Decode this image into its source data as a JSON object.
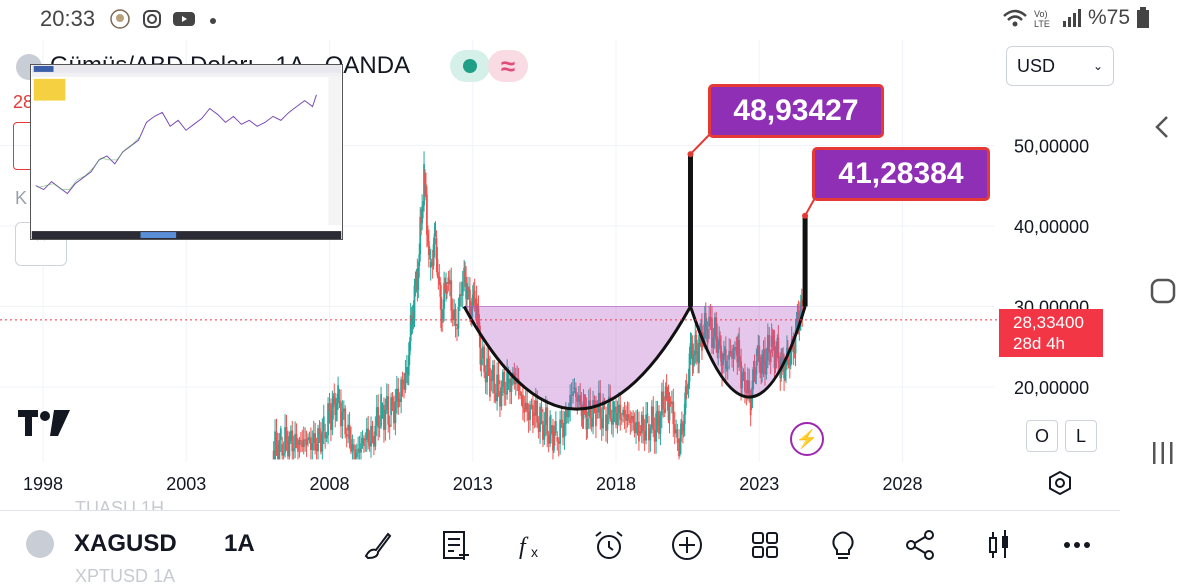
{
  "status_bar": {
    "time": "20:33",
    "battery": "%75",
    "icons": [
      "rose-icon",
      "instagram-icon",
      "youtube-icon",
      "dot-icon",
      "wifi-icon",
      "volte-icon",
      "signal-icon",
      "battery-icon"
    ]
  },
  "header": {
    "title": "Gümüş/ABD Doları · 1A · OANDA",
    "currency": "USD",
    "left_price_fragment": "28",
    "left_k_fragment": "K"
  },
  "chart_data": {
    "type": "candlestick",
    "x_ticks": [
      "1998",
      "2003",
      "2008",
      "2013",
      "2018",
      "2023",
      "2028"
    ],
    "y_ticks": [
      "20,00000",
      "30,00000",
      "40,00000",
      "50,00000"
    ],
    "y_values": [
      20,
      30,
      40,
      50
    ],
    "ylim": [
      12,
      60
    ],
    "xlim": [
      1996.2,
      2032.5
    ],
    "close_series": [
      [
        2006.0,
        12.1
      ],
      [
        2006.3,
        12.9
      ],
      [
        2006.6,
        13.3
      ],
      [
        2006.9,
        12.8
      ],
      [
        2007.2,
        13.4
      ],
      [
        2007.5,
        12.9
      ],
      [
        2007.8,
        14.4
      ],
      [
        2008.1,
        17.5
      ],
      [
        2008.3,
        18.3
      ],
      [
        2008.6,
        14.6
      ],
      [
        2008.9,
        11.3
      ],
      [
        2009.2,
        13.5
      ],
      [
        2009.5,
        13.9
      ],
      [
        2009.8,
        17.2
      ],
      [
        2010.1,
        16.5
      ],
      [
        2010.4,
        18.5
      ],
      [
        2010.7,
        21.9
      ],
      [
        2010.9,
        29.4
      ],
      [
        2011.1,
        35.0
      ],
      [
        2011.3,
        46.5
      ],
      [
        2011.5,
        34.8
      ],
      [
        2011.7,
        38.5
      ],
      [
        2011.9,
        28.5
      ],
      [
        2012.1,
        33.6
      ],
      [
        2012.4,
        27.3
      ],
      [
        2012.7,
        34.3
      ],
      [
        2012.9,
        29.9
      ],
      [
        2013.1,
        31.0
      ],
      [
        2013.3,
        23.5
      ],
      [
        2013.6,
        21.0
      ],
      [
        2013.9,
        19.5
      ],
      [
        2014.2,
        20.5
      ],
      [
        2014.5,
        21.1
      ],
      [
        2014.8,
        17.2
      ],
      [
        2015.1,
        16.8
      ],
      [
        2015.4,
        15.8
      ],
      [
        2015.7,
        14.6
      ],
      [
        2015.9,
        13.8
      ],
      [
        2016.2,
        15.4
      ],
      [
        2016.5,
        19.8
      ],
      [
        2016.8,
        17.4
      ],
      [
        2017.0,
        16.4
      ],
      [
        2017.3,
        17.2
      ],
      [
        2017.6,
        16.6
      ],
      [
        2017.9,
        16.9
      ],
      [
        2018.2,
        16.5
      ],
      [
        2018.5,
        16.0
      ],
      [
        2018.8,
        14.5
      ],
      [
        2019.1,
        15.4
      ],
      [
        2019.4,
        15.2
      ],
      [
        2019.7,
        18.4
      ],
      [
        2019.9,
        17.9
      ],
      [
        2020.2,
        12.0
      ],
      [
        2020.4,
        17.4
      ],
      [
        2020.6,
        24.5
      ],
      [
        2020.8,
        24.3
      ],
      [
        2021.0,
        26.4
      ],
      [
        2021.2,
        27.5
      ],
      [
        2021.5,
        26.3
      ],
      [
        2021.7,
        23.2
      ],
      [
        2021.9,
        23.4
      ],
      [
        2022.2,
        25.0
      ],
      [
        2022.4,
        21.5
      ],
      [
        2022.7,
        18.2
      ],
      [
        2022.9,
        23.9
      ],
      [
        2023.1,
        22.8
      ],
      [
        2023.4,
        25.0
      ],
      [
        2023.6,
        24.2
      ],
      [
        2023.8,
        22.3
      ],
      [
        2024.0,
        23.4
      ],
      [
        2024.2,
        25.0
      ],
      [
        2024.4,
        29.5
      ],
      [
        2024.5,
        28.3
      ]
    ],
    "current_price": "28,33400",
    "countdown": "28d 4h",
    "annotations": [
      "48,93427",
      "41,28384"
    ]
  },
  "toolbar": {
    "symbol": "XAGUSD",
    "interval": "1A",
    "ghost_above": "TUASU        1H",
    "ghost_below": "XPTUSD        1A",
    "tools": [
      "brush-icon",
      "notes-icon",
      "indicator-fx-icon",
      "alarm-icon",
      "plus-circle-icon",
      "grid-icon",
      "idea-bulb-icon",
      "share-icon",
      "candles-icon",
      "more-icon"
    ]
  },
  "side_buttons": {
    "o": "O",
    "l": "L"
  }
}
